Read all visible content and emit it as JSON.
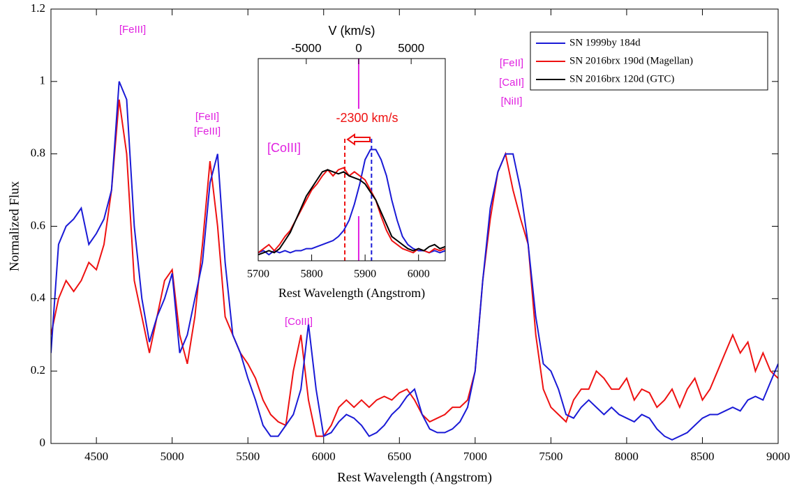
{
  "chart_data": [
    {
      "type": "line",
      "x_label": "Rest Wavelength (Angstrom)",
      "y_label": "Normalized Flux",
      "xlim": [
        4200,
        9000
      ],
      "ylim": [
        0,
        1.2
      ],
      "xticks": [
        4500,
        5000,
        5500,
        6000,
        6500,
        7000,
        7500,
        8000,
        8500,
        9000
      ],
      "yticks": [
        0,
        0.2,
        0.4,
        0.6,
        0.8,
        1,
        1.2
      ],
      "x": [
        4200,
        4250,
        4300,
        4350,
        4400,
        4450,
        4500,
        4550,
        4600,
        4650,
        4700,
        4750,
        4800,
        4850,
        4900,
        4950,
        5000,
        5050,
        5100,
        5150,
        5200,
        5250,
        5300,
        5350,
        5400,
        5450,
        5500,
        5550,
        5600,
        5650,
        5700,
        5750,
        5800,
        5850,
        5900,
        5950,
        6000,
        6050,
        6100,
        6150,
        6200,
        6250,
        6300,
        6350,
        6400,
        6450,
        6500,
        6550,
        6600,
        6650,
        6700,
        6750,
        6800,
        6850,
        6900,
        6950,
        7000,
        7050,
        7100,
        7150,
        7200,
        7250,
        7300,
        7350,
        7400,
        7450,
        7500,
        7550,
        7600,
        7650,
        7700,
        7750,
        7800,
        7850,
        7900,
        7950,
        8000,
        8050,
        8100,
        8150,
        8200,
        8250,
        8300,
        8350,
        8400,
        8450,
        8500,
        8550,
        8600,
        8650,
        8700,
        8750,
        8800,
        8850,
        8900,
        8950,
        9000
      ],
      "series": [
        {
          "name": "SN 2016brx 190d (Magellan)",
          "color": "#ee1111",
          "values": [
            0.3,
            0.4,
            0.45,
            0.42,
            0.45,
            0.5,
            0.48,
            0.55,
            0.7,
            0.95,
            0.8,
            0.45,
            0.35,
            0.25,
            0.35,
            0.45,
            0.48,
            0.3,
            0.22,
            0.35,
            0.55,
            0.78,
            0.6,
            0.35,
            0.3,
            0.25,
            0.22,
            0.18,
            0.12,
            0.08,
            0.06,
            0.05,
            0.2,
            0.3,
            0.12,
            0.02,
            0.02,
            0.05,
            0.1,
            0.12,
            0.1,
            0.12,
            0.1,
            0.12,
            0.13,
            0.12,
            0.14,
            0.15,
            0.12,
            0.08,
            0.06,
            0.07,
            0.08,
            0.1,
            0.1,
            0.12,
            0.2,
            0.45,
            0.62,
            0.75,
            0.8,
            0.7,
            0.62,
            0.55,
            0.3,
            0.15,
            0.1,
            0.08,
            0.06,
            0.12,
            0.15,
            0.15,
            0.2,
            0.18,
            0.15,
            0.15,
            0.18,
            0.12,
            0.15,
            0.14,
            0.1,
            0.12,
            0.15,
            0.1,
            0.15,
            0.18,
            0.12,
            0.15,
            0.2,
            0.25,
            0.3,
            0.25,
            0.28,
            0.2,
            0.25,
            0.2,
            0.18
          ]
        },
        {
          "name": "SN 1999by  184d",
          "color": "#1a1ad6",
          "values": [
            0.25,
            0.55,
            0.6,
            0.62,
            0.65,
            0.55,
            0.58,
            0.62,
            0.7,
            1.0,
            0.95,
            0.6,
            0.4,
            0.28,
            0.35,
            0.4,
            0.47,
            0.25,
            0.3,
            0.4,
            0.5,
            0.72,
            0.8,
            0.5,
            0.3,
            0.25,
            0.18,
            0.12,
            0.05,
            0.02,
            0.02,
            0.05,
            0.08,
            0.15,
            0.33,
            0.15,
            0.02,
            0.03,
            0.06,
            0.08,
            0.07,
            0.05,
            0.02,
            0.03,
            0.05,
            0.08,
            0.1,
            0.13,
            0.15,
            0.08,
            0.04,
            0.03,
            0.03,
            0.04,
            0.06,
            0.1,
            0.2,
            0.45,
            0.65,
            0.75,
            0.8,
            0.8,
            0.7,
            0.55,
            0.35,
            0.22,
            0.2,
            0.15,
            0.08,
            0.07,
            0.1,
            0.12,
            0.1,
            0.08,
            0.1,
            0.08,
            0.07,
            0.06,
            0.08,
            0.07,
            0.04,
            0.02,
            0.01,
            0.02,
            0.03,
            0.05,
            0.07,
            0.08,
            0.08,
            0.09,
            0.1,
            0.09,
            0.12,
            0.13,
            0.12,
            0.17,
            0.22
          ]
        }
      ],
      "annotations": [
        {
          "text": "[FeIII]",
          "color": "#e020e0"
        },
        {
          "text": "[FeII]",
          "color": "#e020e0"
        },
        {
          "text": "[FeIII]",
          "color": "#e020e0"
        },
        {
          "text": "[CoIII]",
          "color": "#e020e0"
        },
        {
          "text": "[FeII]",
          "color": "#e020e0"
        },
        {
          "text": "[CaII]",
          "color": "#e020e0"
        },
        {
          "text": "[NiII]",
          "color": "#e020e0"
        }
      ],
      "legend": "upper right"
    },
    {
      "type": "line",
      "x_label": "Rest Wavelength (Angstrom)",
      "x2_label": "V (km/s)",
      "xlim": [
        5700,
        6050
      ],
      "ylim": [
        0,
        1
      ],
      "xticks": [
        5700,
        5800,
        5900,
        6000
      ],
      "x2lim": [
        -9580,
        8250
      ],
      "x2ticks": [
        -5000,
        0,
        5000
      ],
      "x": [
        5700,
        5710,
        5720,
        5730,
        5740,
        5750,
        5760,
        5770,
        5780,
        5790,
        5800,
        5810,
        5820,
        5830,
        5840,
        5850,
        5860,
        5870,
        5880,
        5890,
        5900,
        5910,
        5920,
        5930,
        5940,
        5950,
        5960,
        5970,
        5980,
        5990,
        6000,
        6010,
        6020,
        6030,
        6040,
        6050
      ],
      "series": [
        {
          "name": "SN 1999by  184d",
          "color": "#1a1ad6",
          "values": [
            0.04,
            0.05,
            0.03,
            0.05,
            0.04,
            0.05,
            0.04,
            0.05,
            0.05,
            0.06,
            0.06,
            0.07,
            0.08,
            0.09,
            0.1,
            0.12,
            0.15,
            0.2,
            0.28,
            0.38,
            0.5,
            0.55,
            0.55,
            0.5,
            0.42,
            0.3,
            0.2,
            0.12,
            0.08,
            0.06,
            0.05,
            0.05,
            0.04,
            0.05,
            0.04,
            0.05
          ]
        },
        {
          "name": "SN 2016brx 190d (Magellan)",
          "color": "#ee1111",
          "values": [
            0.04,
            0.06,
            0.08,
            0.05,
            0.08,
            0.12,
            0.15,
            0.2,
            0.25,
            0.3,
            0.35,
            0.38,
            0.42,
            0.45,
            0.42,
            0.45,
            0.46,
            0.42,
            0.44,
            0.42,
            0.4,
            0.35,
            0.3,
            0.22,
            0.15,
            0.1,
            0.08,
            0.06,
            0.05,
            0.04,
            0.06,
            0.05,
            0.04,
            0.06,
            0.05,
            0.06
          ]
        },
        {
          "name": "SN 2016brx 120d (GTC)",
          "color": "#000000",
          "values": [
            0.03,
            0.04,
            0.05,
            0.04,
            0.06,
            0.1,
            0.14,
            0.2,
            0.26,
            0.32,
            0.36,
            0.4,
            0.44,
            0.45,
            0.44,
            0.43,
            0.44,
            0.42,
            0.41,
            0.4,
            0.38,
            0.34,
            0.3,
            0.24,
            0.18,
            0.12,
            0.1,
            0.08,
            0.06,
            0.05,
            0.06,
            0.05,
            0.07,
            0.08,
            0.06,
            0.07
          ]
        }
      ],
      "reference_lines": [
        {
          "x": 5888,
          "color": "#e020e0",
          "dashed": false
        },
        {
          "x": 5862,
          "color": "#ee1111",
          "dashed": true
        },
        {
          "x": 5912,
          "color": "#1a1ad6",
          "dashed": true
        }
      ],
      "annotations": [
        {
          "text": "-2300 km/s",
          "color": "#ee1111"
        },
        {
          "text": "[CoIII]",
          "color": "#e020e0"
        }
      ]
    }
  ]
}
